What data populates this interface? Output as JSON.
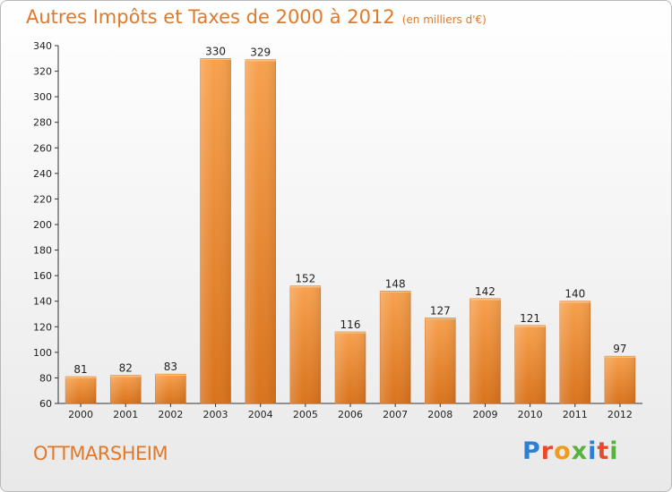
{
  "header": {
    "title": "Autres Impôts et Taxes de 2000 à 2012",
    "unit": "(en milliers d'€)"
  },
  "footer": {
    "city": "OTTMARSHEIM",
    "logo": {
      "text": "Proxiti",
      "colors": [
        "#2b7fd4",
        "#e84a2e",
        "#f29a1f",
        "#56b33b",
        "#2b7fd4",
        "#e84a2e",
        "#56b33b"
      ]
    }
  },
  "chart_data": {
    "type": "bar",
    "title": "Autres Impôts et Taxes de 2000 à 2012",
    "xlabel": "",
    "ylabel": "",
    "categories": [
      "2000",
      "2001",
      "2002",
      "2003",
      "2004",
      "2005",
      "2006",
      "2007",
      "2008",
      "2009",
      "2010",
      "2011",
      "2012"
    ],
    "values": [
      81,
      82,
      83,
      330,
      329,
      152,
      116,
      148,
      127,
      142,
      121,
      140,
      97
    ],
    "ylim": [
      60,
      340
    ],
    "yticks": [
      60,
      80,
      100,
      120,
      140,
      160,
      180,
      200,
      220,
      240,
      260,
      280,
      300,
      320,
      340
    ],
    "grid": false,
    "legend": "none",
    "bar_color": "#f08a2c"
  }
}
